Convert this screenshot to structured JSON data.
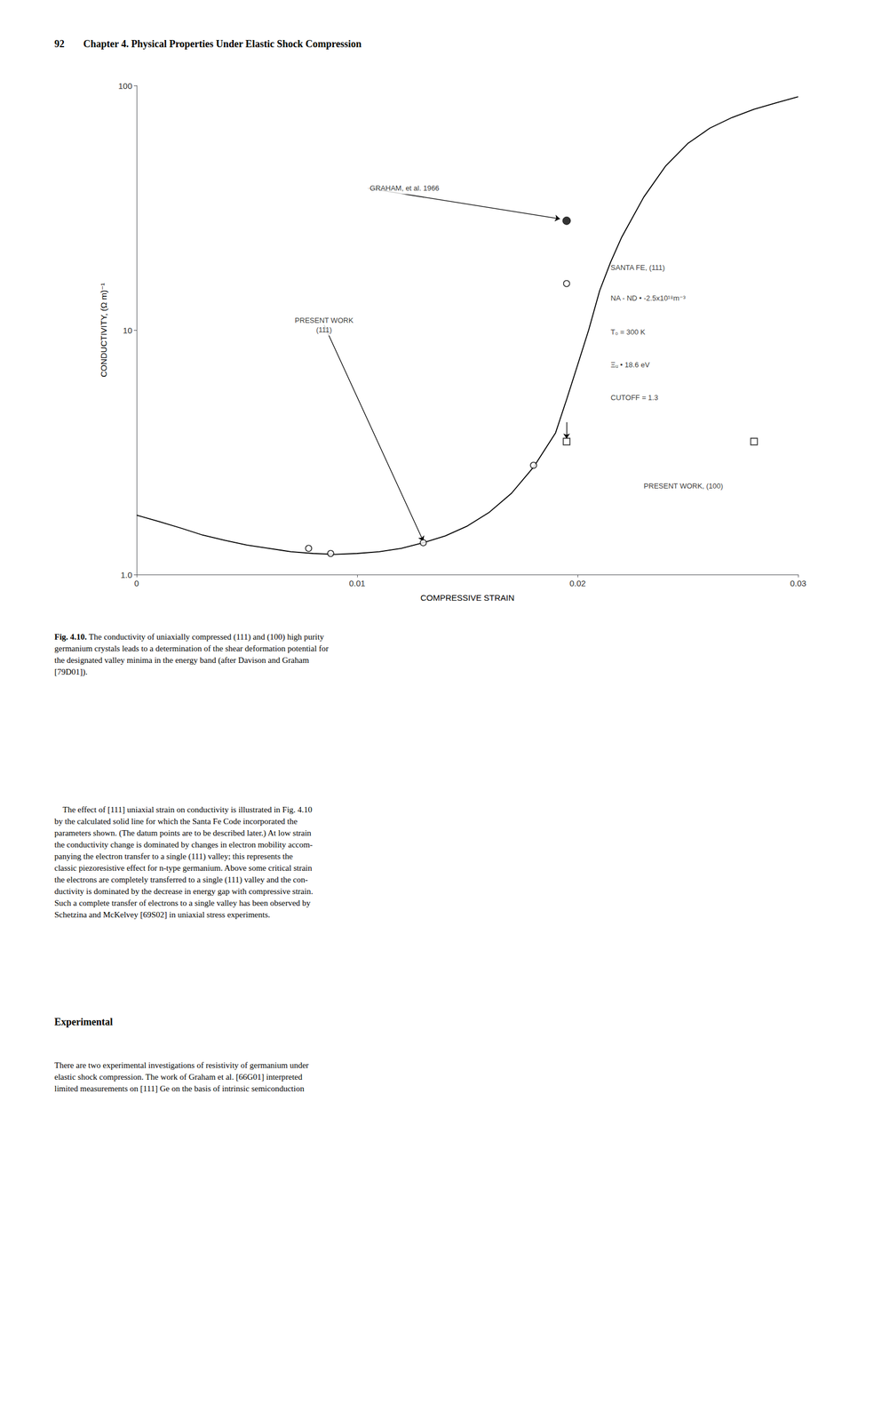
{
  "page": {
    "header_number": "92",
    "header": "Chapter 4. Physical Properties Under Elastic Shock Compression",
    "caption_label": "Fig. 4.10.",
    "caption": " The conductivity of uniaxially compressed (111) and (100) high purity\ngermanium crystals leads to a determination of the shear deformation potential for\nthe designated valley minima in the energy band (after Davison and Graham\n[79D01]).",
    "paragraph_1": "    The effect of [111] uniaxial strain on conductivity is illustrated in Fig. 4.10\nby the calculated solid line for which the Santa Fe Code incorporated the\nparameters shown. (The datum points are to be described later.) At low strain\nthe conductivity change is dominated by changes in electron mobility accom-\npanying the electron transfer to a single (111) valley; this represents the\nclassic piezoresistive effect for n-type germanium. Above some critical strain\nthe electrons are completely transferred to a single (111) valley and the con-\nductivity is dominated by the decrease in energy gap with compressive strain.\nSuch a complete transfer of electrons to a single valley has been observed by\nSchetzina and McKelvey [69S02] in uniaxial stress experiments.",
    "heading": "Experimental",
    "paragraph_2": "There are two experimental investigations of resistivity of germanium under\nelastic shock compression. The work of Graham et al. [66G01] interpreted\nlimited measurements on [111] Ge on the basis of intrinsic semiconduction"
  },
  "chart_data": {
    "type": "line",
    "x_label": "COMPRESSIVE STRAIN",
    "y_label": "CONDUCTIVITY, (Ω m)⁻¹",
    "log": "y",
    "grid": false,
    "xlim": [
      0,
      0.03
    ],
    "xticks": [
      0,
      0.01,
      0.02,
      0.03
    ],
    "ylim": [
      1.0,
      100
    ],
    "yticks": [
      {
        "value": 1.0,
        "label": "1.0"
      },
      10,
      100
    ],
    "series": [
      {
        "type": "line",
        "color": "#000000",
        "marker": "none",
        "line_style": "solid",
        "x": [
          0.0,
          0.001,
          0.002,
          0.003,
          0.004,
          0.005,
          0.006,
          0.007,
          0.008,
          0.009,
          0.01,
          0.011,
          0.012,
          0.013,
          0.014,
          0.015,
          0.016,
          0.017,
          0.018,
          0.019,
          0.0195,
          0.02,
          0.0205,
          0.021,
          0.0215,
          0.022,
          0.023,
          0.024,
          0.025,
          0.026,
          0.027,
          0.028,
          0.029,
          0.03
        ],
        "values": [
          1.75,
          1.65,
          1.55,
          1.45,
          1.38,
          1.32,
          1.28,
          1.24,
          1.22,
          1.21,
          1.22,
          1.24,
          1.28,
          1.35,
          1.44,
          1.58,
          1.8,
          2.15,
          2.75,
          3.8,
          5.2,
          7.2,
          10.0,
          14.5,
          19.0,
          24.0,
          35.0,
          47.0,
          58.0,
          67.0,
          74.0,
          80.0,
          85.0,
          90.0
        ]
      },
      {
        "type": "scatter",
        "color": "#000000",
        "marker": "open_circle",
        "x": [
          0.0078,
          0.0088,
          0.013,
          0.018,
          0.0195
        ],
        "values": [
          1.28,
          1.22,
          1.35,
          2.8,
          15.5
        ]
      },
      {
        "type": "scatter",
        "color": "#000000",
        "marker": "filled_circle",
        "x": [
          0.0195
        ],
        "values": [
          28.0
        ]
      },
      {
        "type": "scatter",
        "color": "#000000",
        "marker": "open_square",
        "x": [
          0.0195,
          0.028
        ],
        "values": [
          3.5,
          3.5
        ]
      }
    ],
    "annotations": [
      {
        "text": "GRAHAM, et al. 1966",
        "x": 0.0105,
        "y": 38.0,
        "arrow_to": [
          0.0192,
          28.5
        ]
      },
      {
        "text": "PRESENT WORK\n(111)",
        "x": 0.0085,
        "y": 10.5,
        "arrow_to": [
          0.013,
          1.37
        ]
      },
      {
        "text": "SANTA FE, (111)",
        "x": 0.0215,
        "y": 18.0
      },
      {
        "text": "NA - ND • -2.5x10¹⁸m⁻³",
        "x": 0.0215,
        "y": 13.5
      },
      {
        "text": "T₀ = 300 K",
        "x": 0.0215,
        "y": 9.8
      },
      {
        "text": "Ξᵤ • 18.6 eV",
        "x": 0.0215,
        "y": 7.2
      },
      {
        "text": "CUTOFF = 1.3",
        "x": 0.0215,
        "y": 5.3
      },
      {
        "text": "PRESENT WORK, (100)",
        "x": 0.023,
        "y": 2.3
      },
      {
        "arrow_from": [
          0.0195,
          4.2
        ],
        "arrow_to": [
          0.0195,
          3.6
        ]
      }
    ]
  }
}
